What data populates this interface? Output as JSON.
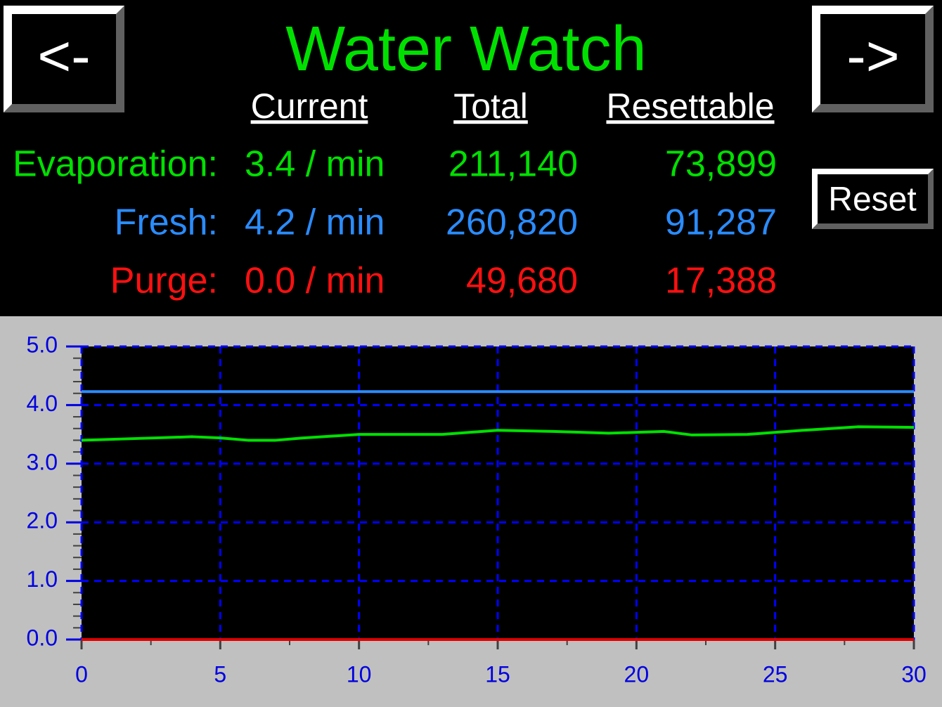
{
  "header": {
    "title": "Water Watch",
    "prev_button": "<-",
    "next_button": "->",
    "reset_button": "Reset"
  },
  "table": {
    "columns": [
      "Current",
      "Total",
      "Resettable"
    ],
    "rows": [
      {
        "label": "Evaporation:",
        "current": "3.4 / min",
        "total": "211,140",
        "resettable": "73,899",
        "color": "#00e000"
      },
      {
        "label": "Fresh:",
        "current": "4.2 / min",
        "total": "260,820",
        "resettable": "91,287",
        "color": "#2a8cff"
      },
      {
        "label": "Purge:",
        "current": "0.0 / min",
        "total": "49,680",
        "resettable": "17,388",
        "color": "#ff1010"
      }
    ]
  },
  "chart_data": {
    "type": "line",
    "series": [
      {
        "name": "Evaporation",
        "color": "#00e000",
        "x": [
          0,
          2,
          4,
          5,
          6,
          7,
          8,
          10,
          12,
          13,
          15,
          17,
          19,
          21,
          22,
          24,
          26,
          28,
          30
        ],
        "values": [
          3.4,
          3.43,
          3.46,
          3.44,
          3.4,
          3.4,
          3.44,
          3.5,
          3.5,
          3.5,
          3.57,
          3.55,
          3.52,
          3.55,
          3.49,
          3.5,
          3.57,
          3.63,
          3.62
        ]
      },
      {
        "name": "Fresh",
        "color": "#2a8cff",
        "x": [
          0,
          30
        ],
        "values": [
          4.23,
          4.23
        ]
      },
      {
        "name": "Purge",
        "color": "#e00000",
        "x": [
          0,
          30
        ],
        "values": [
          0,
          0
        ]
      }
    ],
    "xlim": [
      0,
      30
    ],
    "xticks": [
      0,
      5,
      10,
      15,
      20,
      25,
      30
    ],
    "ylim": [
      0,
      5
    ],
    "yticks": [
      {
        "value": 0,
        "label": "0.0"
      },
      {
        "value": 1,
        "label": "1.0"
      },
      {
        "value": 2,
        "label": "2.0"
      },
      {
        "value": 3,
        "label": "3.0"
      },
      {
        "value": 4,
        "label": "4.0"
      },
      {
        "value": 5,
        "label": "5.0"
      }
    ],
    "x_minor_ticks": [
      2.5,
      7.5,
      12.5,
      17.5,
      22.5,
      27.5
    ],
    "y_minor_ticks": [
      0.2,
      0.4,
      0.6,
      0.8,
      1.2,
      1.4,
      1.6,
      1.8,
      2.2,
      2.4,
      2.6,
      2.8,
      3.2,
      3.4,
      3.6,
      3.8,
      4.2,
      4.4,
      4.6,
      4.8
    ],
    "grid": true,
    "grid_color": "#0000ff",
    "tick_color": "#0000e0"
  }
}
